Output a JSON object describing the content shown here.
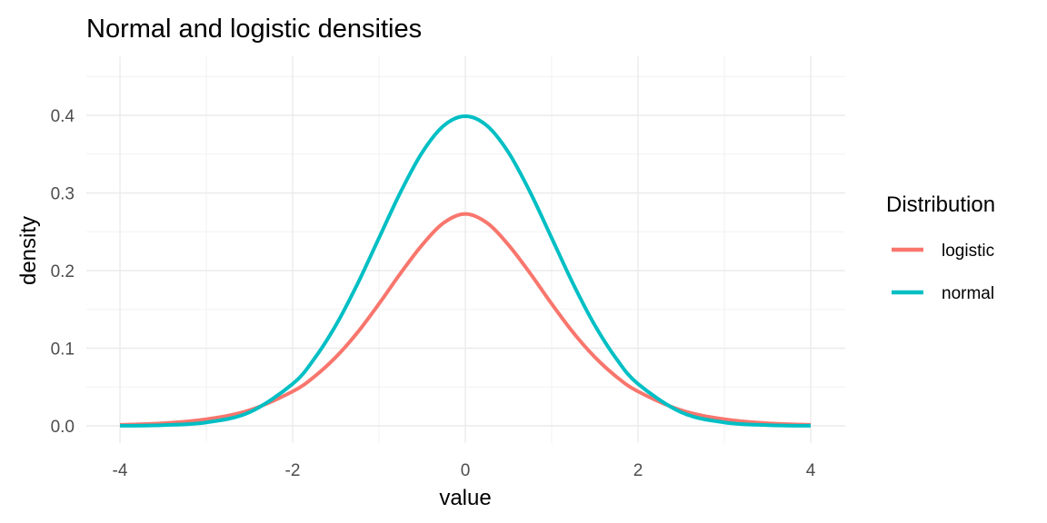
{
  "chart_data": {
    "type": "line",
    "title": "Normal and logistic densities",
    "xlabel": "value",
    "ylabel": "density",
    "xlim": [
      -4,
      4
    ],
    "ylim": [
      0,
      0.455
    ],
    "x_ticks": [
      -4,
      -2,
      0,
      2,
      4
    ],
    "y_ticks": [
      0.0,
      0.1,
      0.2,
      0.3,
      0.4
    ],
    "x_tick_labels": [
      "-4",
      "-2",
      "0",
      "2",
      "4"
    ],
    "y_tick_labels": [
      "0.0",
      "0.1",
      "0.2",
      "0.3",
      "0.4"
    ],
    "grid": true,
    "legend": {
      "title": "Distribution",
      "placement": "right"
    },
    "x": [
      -4,
      -3.5,
      -3,
      -2.5,
      -2,
      -1.75,
      -1.5,
      -1.25,
      -1,
      -0.75,
      -0.5,
      -0.25,
      0,
      0.25,
      0.5,
      0.75,
      1,
      1.25,
      1.5,
      1.75,
      2,
      2.5,
      3,
      3.5,
      4
    ],
    "series": [
      {
        "name": "logistic",
        "color": "#F8766D",
        "values": [
          0.0013,
          0.0034,
          0.0085,
          0.0201,
          0.0443,
          0.0633,
          0.0885,
          0.1201,
          0.1572,
          0.1966,
          0.233,
          0.2615,
          0.273,
          0.2615,
          0.233,
          0.1966,
          0.1572,
          0.1201,
          0.0885,
          0.0633,
          0.0443,
          0.0201,
          0.0085,
          0.0034,
          0.0013
        ]
      },
      {
        "name": "normal",
        "color": "#00BFC4",
        "values": [
          0.0001,
          0.0009,
          0.0044,
          0.0175,
          0.054,
          0.0863,
          0.1295,
          0.1826,
          0.242,
          0.3011,
          0.3521,
          0.3867,
          0.3989,
          0.3867,
          0.3521,
          0.3011,
          0.242,
          0.1826,
          0.1295,
          0.0863,
          0.054,
          0.0175,
          0.0044,
          0.0009,
          0.0001
        ]
      }
    ]
  }
}
